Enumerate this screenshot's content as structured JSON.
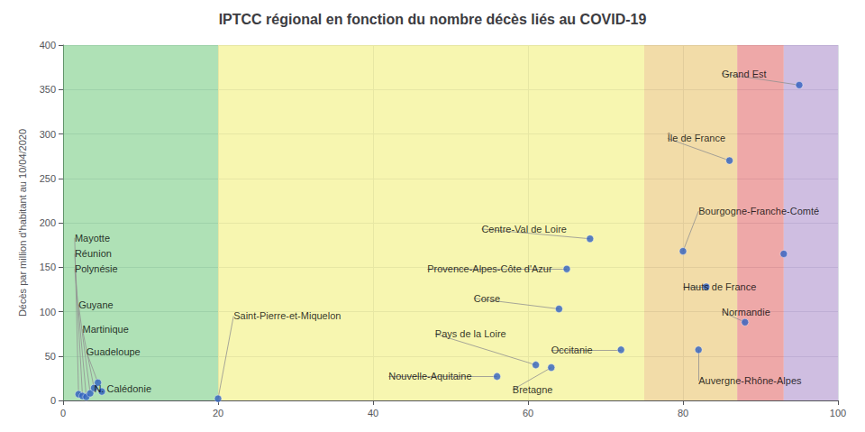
{
  "chart_data": {
    "type": "scatter",
    "title": "IPTCC régional en fonction du nombre décès liés au COVID-19",
    "ylabel": "Décès par million d'habitant au 10/04/2020",
    "xlim": [
      0,
      100
    ],
    "ylim": [
      0,
      400
    ],
    "xticks": [
      0,
      20,
      40,
      60,
      80,
      100
    ],
    "yticks": [
      0,
      50,
      100,
      150,
      200,
      250,
      300,
      350,
      400
    ],
    "grid": true,
    "color": "#3060C0",
    "zones": [
      {
        "from": 0,
        "to": 20,
        "color": "#6EC87A"
      },
      {
        "from": 20,
        "to": 75,
        "color": "#F0EE70"
      },
      {
        "from": 75,
        "to": 87,
        "color": "#E8C060"
      },
      {
        "from": 87,
        "to": 93,
        "color": "#E06060"
      },
      {
        "from": 93,
        "to": 100,
        "color": "#A888C8"
      }
    ],
    "x": [
      2.0,
      2.5,
      3.0,
      3.5,
      4.0,
      4.5,
      5.0,
      20.0,
      56.0,
      61.0,
      63.0,
      64.0,
      65.0,
      68.0,
      72.0,
      80.0,
      83.0,
      88.0,
      82.0,
      86.0,
      95.0,
      93.0
    ],
    "values": [
      7,
      5,
      4,
      8,
      14,
      20,
      10,
      2,
      27,
      40,
      37,
      103,
      148,
      182,
      57,
      168,
      128,
      88,
      57,
      270,
      355,
      165
    ],
    "annotations": [
      {
        "text": "Mayotte",
        "x": 2.0,
        "y": 7,
        "text_x": 1.5,
        "text_y": 183
      },
      {
        "text": "Réunion",
        "x": 2.5,
        "y": 5,
        "text_x": 1.5,
        "text_y": 165
      },
      {
        "text": "Polynésie",
        "x": 3.0,
        "y": 4,
        "text_x": 1.5,
        "text_y": 148
      },
      {
        "text": "Guyane",
        "x": 3.5,
        "y": 8,
        "text_x": 2.0,
        "text_y": 108
      },
      {
        "text": "Martinique",
        "x": 4.0,
        "y": 14,
        "text_x": 2.5,
        "text_y": 80
      },
      {
        "text": "Guadeloupe",
        "x": 4.5,
        "y": 20,
        "text_x": 3.0,
        "text_y": 55
      },
      {
        "text": "N. Calédonie",
        "x": 5.0,
        "y": 10,
        "text_x": 4.0,
        "text_y": 13
      },
      {
        "text": "Saint-Pierre-et-Miquelon",
        "x": 20.0,
        "y": 2,
        "text_x": 22.0,
        "text_y": 95
      },
      {
        "text": "Nouvelle-Aquitaine",
        "x": 56.0,
        "y": 27,
        "text_x": 42.0,
        "text_y": 27
      },
      {
        "text": "Pays de la Loire",
        "x": 61.0,
        "y": 40,
        "text_x": 48.0,
        "text_y": 75
      },
      {
        "text": "Bretagne",
        "x": 63.0,
        "y": 37,
        "text_x": 58.0,
        "text_y": 12
      },
      {
        "text": "Corse",
        "x": 64.0,
        "y": 103,
        "text_x": 53.0,
        "text_y": 115
      },
      {
        "text": "Provence-Alpes-Côte d'Azur",
        "x": 65.0,
        "y": 148,
        "text_x": 47.0,
        "text_y": 148
      },
      {
        "text": "Centre-Val de Loire",
        "x": 68.0,
        "y": 182,
        "text_x": 54.0,
        "text_y": 193
      },
      {
        "text": "Occitanie",
        "x": 72.0,
        "y": 57,
        "text_x": 63.0,
        "text_y": 57
      },
      {
        "text": "Bourgogne-Franche-Comté",
        "x": 80.0,
        "y": 168,
        "text_x": 82.0,
        "text_y": 213
      },
      {
        "text": "Hauts de France",
        "x": 83.0,
        "y": 128,
        "text_x": 80.0,
        "text_y": 128
      },
      {
        "text": "Normandie",
        "x": 88.0,
        "y": 88,
        "text_x": 85.0,
        "text_y": 100
      },
      {
        "text": "Auvergne-Rhône-Alpes",
        "x": 82.0,
        "y": 57,
        "text_x": 82.0,
        "text_y": 22
      },
      {
        "text": "Île de France",
        "x": 86.0,
        "y": 270,
        "text_x": 78.0,
        "text_y": 295
      },
      {
        "text": "Grand Est",
        "x": 95.0,
        "y": 355,
        "text_x": 85.0,
        "text_y": 368
      }
    ]
  }
}
